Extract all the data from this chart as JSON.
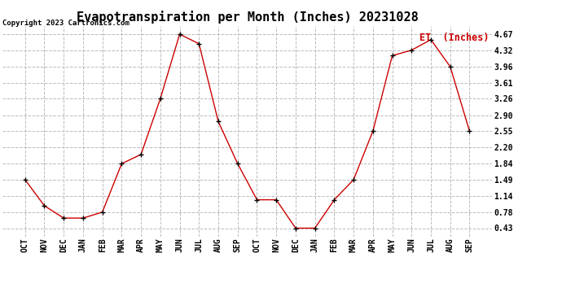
{
  "title": "Evapotranspiration per Month (Inches) 20231028",
  "copyright": "Copyright 2023 Cartronics.com",
  "legend_label": "ET  (Inches)",
  "months": [
    "OCT",
    "NOV",
    "DEC",
    "JAN",
    "FEB",
    "MAR",
    "APR",
    "MAY",
    "JUN",
    "JUL",
    "AUG",
    "SEP",
    "OCT",
    "NOV",
    "DEC",
    "JAN",
    "FEB",
    "MAR",
    "APR",
    "MAY",
    "JUN",
    "JUL",
    "AUG",
    "SEP"
  ],
  "values": [
    1.49,
    0.92,
    0.65,
    0.65,
    0.78,
    1.84,
    2.04,
    3.26,
    4.67,
    4.46,
    2.76,
    1.84,
    1.05,
    1.05,
    0.43,
    0.43,
    1.05,
    1.49,
    2.55,
    4.2,
    4.32,
    4.55,
    3.96,
    2.55
  ],
  "yticks": [
    0.43,
    0.78,
    1.14,
    1.49,
    1.84,
    2.2,
    2.55,
    2.9,
    3.26,
    3.61,
    3.96,
    4.32,
    4.67
  ],
  "line_color": "#cc0000",
  "marker": "+",
  "marker_color": "#000000",
  "grid_color": "#bbbbbb",
  "background_color": "#ffffff",
  "title_fontsize": 11,
  "legend_color": "#cc0000",
  "copyright_color": "#000000",
  "copyright_fontsize": 6.5,
  "tick_fontsize": 7,
  "ymin": 0.25,
  "ymax": 4.85
}
